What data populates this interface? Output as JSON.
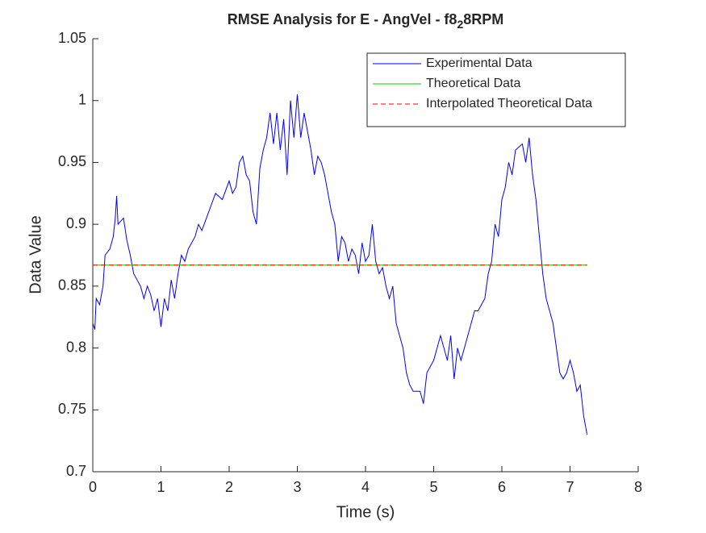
{
  "chart_data": {
    "type": "line",
    "title": [
      "RMSE Analysis for E - AngVel - f8",
      "2",
      "8RPM"
    ],
    "xlabel": "Time (s)",
    "ylabel": "Data Value",
    "xlim": [
      0,
      8
    ],
    "xticks": [
      0,
      1,
      2,
      3,
      4,
      5,
      6,
      7,
      8
    ],
    "ylim": [
      0.7,
      1.05
    ],
    "yticks": [
      0.7,
      0.75,
      0.8,
      0.85,
      0.9,
      0.95,
      1,
      1.05
    ],
    "grid": false,
    "legend": "northeast",
    "series": [
      {
        "name": "Experimental Data",
        "color": "#0000ff",
        "dash": false,
        "x": [
          0,
          0.03,
          0.05,
          0.1,
          0.15,
          0.18,
          0.25,
          0.3,
          0.33,
          0.35,
          0.37,
          0.45,
          0.5,
          0.55,
          0.6,
          0.65,
          0.7,
          0.75,
          0.8,
          0.85,
          0.9,
          0.95,
          1.0,
          1.05,
          1.1,
          1.15,
          1.2,
          1.25,
          1.3,
          1.35,
          1.4,
          1.5,
          1.55,
          1.6,
          1.7,
          1.8,
          1.9,
          2.0,
          2.05,
          2.1,
          2.15,
          2.2,
          2.25,
          2.3,
          2.35,
          2.4,
          2.45,
          2.5,
          2.55,
          2.6,
          2.65,
          2.7,
          2.75,
          2.8,
          2.85,
          2.9,
          2.95,
          3.0,
          3.05,
          3.1,
          3.2,
          3.25,
          3.3,
          3.35,
          3.4,
          3.45,
          3.5,
          3.55,
          3.6,
          3.65,
          3.7,
          3.75,
          3.8,
          3.85,
          3.9,
          3.95,
          4.0,
          4.05,
          4.1,
          4.15,
          4.2,
          4.25,
          4.3,
          4.35,
          4.4,
          4.45,
          4.5,
          4.55,
          4.6,
          4.65,
          4.7,
          4.8,
          4.85,
          4.9,
          4.95,
          5.0,
          5.05,
          5.1,
          5.15,
          5.2,
          5.25,
          5.3,
          5.35,
          5.4,
          5.45,
          5.5,
          5.55,
          5.6,
          5.65,
          5.7,
          5.75,
          5.8,
          5.85,
          5.9,
          5.95,
          6.0,
          6.05,
          6.1,
          6.15,
          6.2,
          6.3,
          6.35,
          6.4,
          6.45,
          6.5,
          6.55,
          6.6,
          6.65,
          6.7,
          6.75,
          6.8,
          6.85,
          6.9,
          6.95,
          7.0,
          7.05,
          7.1,
          7.15,
          7.2,
          7.25
        ],
        "values": [
          0.82,
          0.815,
          0.84,
          0.835,
          0.85,
          0.875,
          0.88,
          0.89,
          0.905,
          0.923,
          0.9,
          0.905,
          0.887,
          0.875,
          0.86,
          0.855,
          0.85,
          0.84,
          0.85,
          0.843,
          0.83,
          0.84,
          0.817,
          0.84,
          0.83,
          0.855,
          0.84,
          0.86,
          0.875,
          0.87,
          0.88,
          0.89,
          0.9,
          0.895,
          0.91,
          0.925,
          0.92,
          0.935,
          0.925,
          0.93,
          0.95,
          0.955,
          0.94,
          0.935,
          0.91,
          0.9,
          0.945,
          0.96,
          0.97,
          0.99,
          0.965,
          0.99,
          0.96,
          0.985,
          0.94,
          1.0,
          0.97,
          1.005,
          0.97,
          0.99,
          0.96,
          0.94,
          0.955,
          0.95,
          0.94,
          0.925,
          0.91,
          0.9,
          0.87,
          0.89,
          0.885,
          0.87,
          0.88,
          0.875,
          0.86,
          0.885,
          0.87,
          0.875,
          0.9,
          0.87,
          0.86,
          0.865,
          0.85,
          0.84,
          0.85,
          0.82,
          0.81,
          0.8,
          0.78,
          0.77,
          0.765,
          0.765,
          0.755,
          0.78,
          0.785,
          0.79,
          0.8,
          0.81,
          0.8,
          0.79,
          0.81,
          0.775,
          0.8,
          0.79,
          0.8,
          0.81,
          0.82,
          0.83,
          0.83,
          0.835,
          0.84,
          0.86,
          0.87,
          0.9,
          0.89,
          0.92,
          0.93,
          0.95,
          0.94,
          0.96,
          0.965,
          0.95,
          0.97,
          0.94,
          0.92,
          0.89,
          0.86,
          0.84,
          0.83,
          0.82,
          0.8,
          0.78,
          0.775,
          0.78,
          0.79,
          0.78,
          0.765,
          0.77,
          0.745,
          0.73
        ]
      },
      {
        "name": "Theoretical Data",
        "color": "#00cc00",
        "dash": false,
        "x": [
          0,
          7.25
        ],
        "values": [
          0.867,
          0.867
        ]
      },
      {
        "name": "Interpolated Theoretical Data",
        "color": "#ff0000",
        "dash": true,
        "x": [
          0,
          7.25
        ],
        "values": [
          0.867,
          0.867
        ]
      }
    ]
  }
}
